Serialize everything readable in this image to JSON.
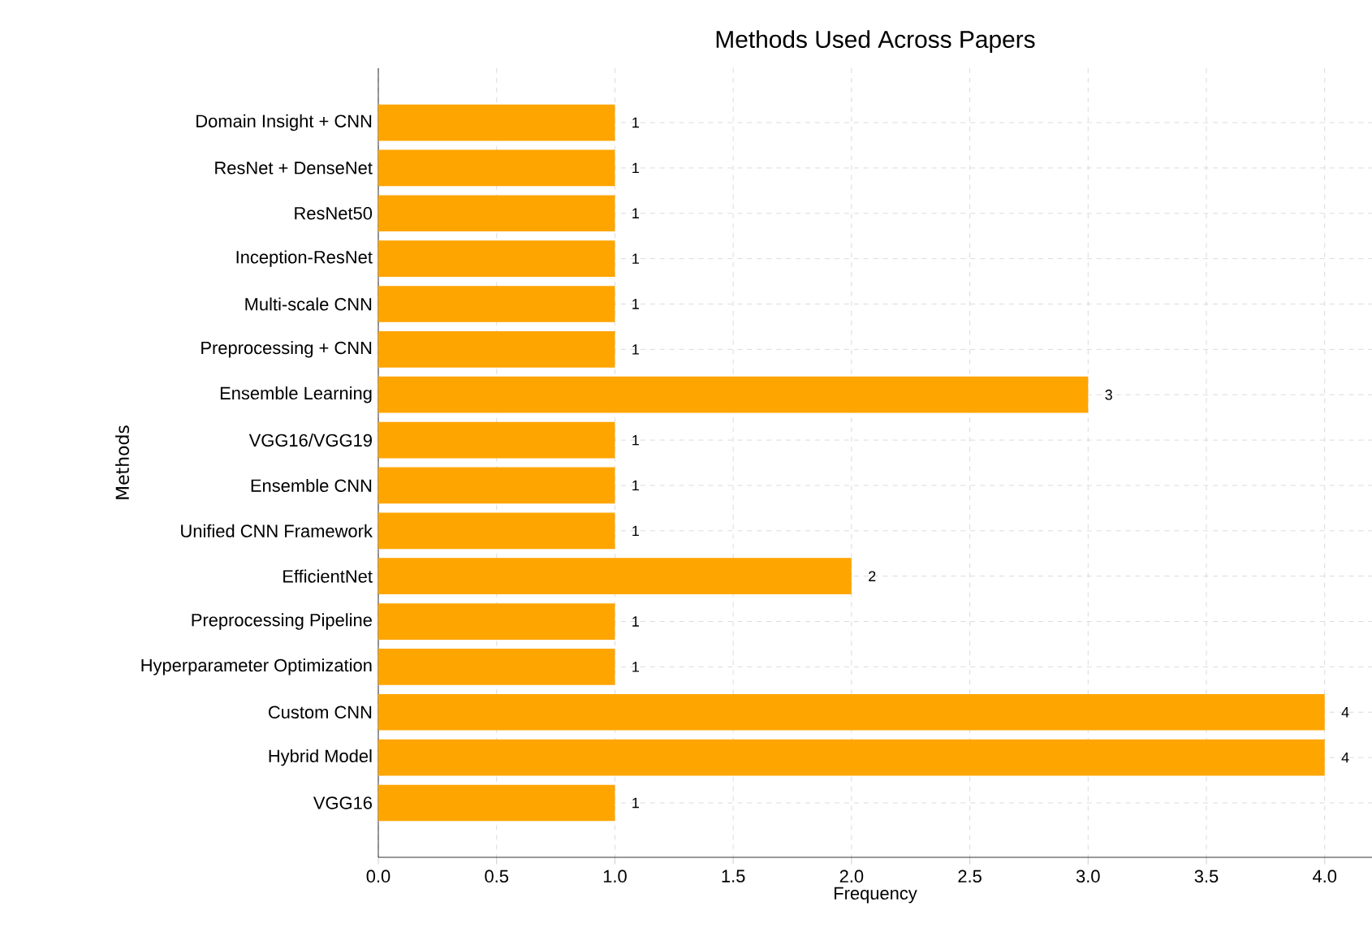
{
  "chart_data": {
    "type": "bar",
    "orientation": "horizontal",
    "title": "Methods Used Across Papers",
    "xlabel": "Frequency",
    "ylabel": "Methods",
    "categories": [
      "Domain Insight + CNN",
      "ResNet + DenseNet",
      "ResNet50",
      "Inception-ResNet",
      "Multi-scale CNN",
      "Preprocessing + CNN",
      "Ensemble Learning",
      "VGG16/VGG19",
      "Ensemble CNN",
      "Unified CNN Framework",
      "EfficientNet",
      "Preprocessing Pipeline",
      "Hyperparameter Optimization",
      "Custom CNN",
      "Hybrid Model",
      "VGG16"
    ],
    "values": [
      1,
      1,
      1,
      1,
      1,
      1,
      3,
      1,
      1,
      1,
      2,
      1,
      1,
      4,
      4,
      1
    ],
    "color": "#ffa500",
    "xlim": [
      0,
      4.2
    ],
    "xticks": [
      {
        "value": 0,
        "label": "0.0"
      },
      {
        "value": 0.5,
        "label": "0.5"
      },
      {
        "value": 1,
        "label": "1.0"
      },
      {
        "value": 1.5,
        "label": "1.5"
      },
      {
        "value": 2,
        "label": "2.0"
      },
      {
        "value": 2.5,
        "label": "2.5"
      },
      {
        "value": 3,
        "label": "3.0"
      },
      {
        "value": 3.5,
        "label": "3.5"
      },
      {
        "value": 4,
        "label": "4.0"
      }
    ],
    "grid": true,
    "data_labels": true
  }
}
